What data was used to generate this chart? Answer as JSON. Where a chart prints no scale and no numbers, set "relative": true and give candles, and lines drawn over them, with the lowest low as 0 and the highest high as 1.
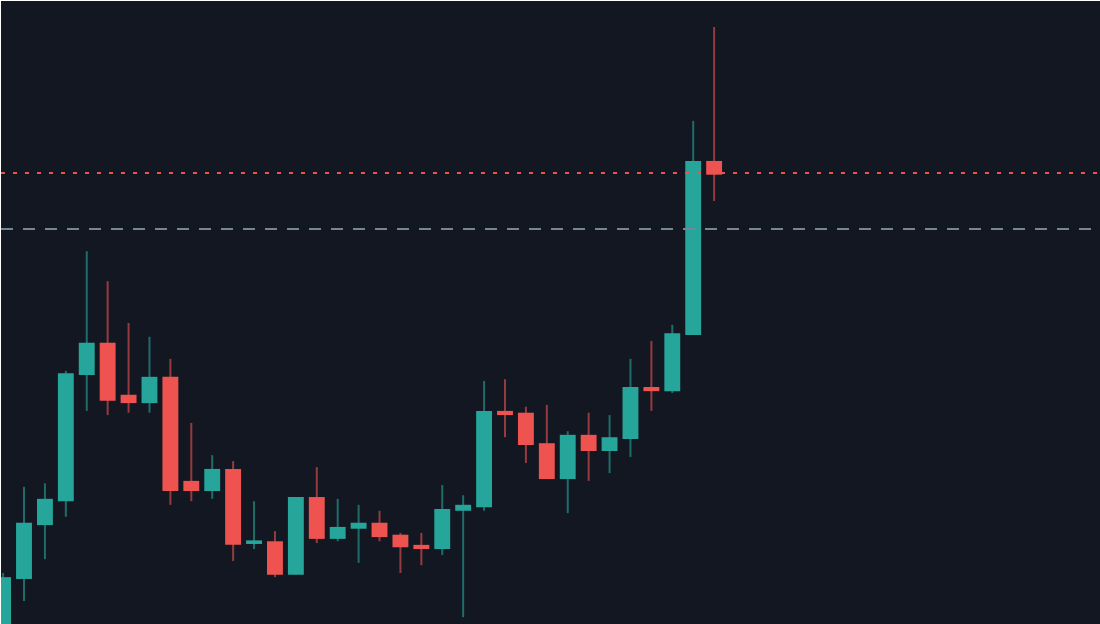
{
  "chart_data": {
    "type": "candlestick",
    "relative": true,
    "grid": false,
    "categories": [
      null,
      null,
      null,
      null,
      null,
      null,
      null,
      null,
      null,
      null,
      null,
      null,
      null,
      null,
      null,
      null,
      null,
      null,
      null,
      null,
      null,
      null,
      null,
      null,
      null,
      null,
      null,
      null,
      null,
      null,
      null,
      null,
      null,
      null,
      null,
      null,
      null,
      null,
      null,
      null,
      null,
      null,
      null,
      null,
      null,
      null,
      null,
      null,
      null,
      null,
      null,
      null,
      null
    ],
    "ohlc": [
      [
        0,
        0.087,
        0,
        0.08
      ],
      [
        0.077,
        0.231,
        0.04,
        0.171
      ],
      [
        0.167,
        0.237,
        0.11,
        0.211
      ],
      [
        0.207,
        0.425,
        0.181,
        0.421
      ],
      [
        0.418,
        0.625,
        0.358,
        0.472
      ],
      [
        0.472,
        0.575,
        0.351,
        0.375
      ],
      [
        0.385,
        0.505,
        0.355,
        0.371
      ],
      [
        0.371,
        0.482,
        0.355,
        0.415
      ],
      [
        0.415,
        0.445,
        0.201,
        0.224
      ],
      [
        0.241,
        0.338,
        0.207,
        0.224
      ],
      [
        0.224,
        0.284,
        0.211,
        0.261
      ],
      [
        0.261,
        0.274,
        0.107,
        0.134
      ],
      [
        0.137,
        0.207,
        0.127,
        0.14
      ],
      [
        0.14,
        0.157,
        0.08,
        0.084
      ],
      [
        0.084,
        0.214,
        0.084,
        0.214
      ],
      [
        0.214,
        0.264,
        0.137,
        0.144
      ],
      [
        0.144,
        0.211,
        0.14,
        0.164
      ],
      [
        0.161,
        0.201,
        0.104,
        0.171
      ],
      [
        0.171,
        0.191,
        0.14,
        0.147
      ],
      [
        0.151,
        0.154,
        0.087,
        0.13
      ],
      [
        0.134,
        0.154,
        0.1,
        0.127
      ],
      [
        0.127,
        0.234,
        0.117,
        0.194
      ],
      [
        0.191,
        0.217,
        0.013,
        0.201
      ],
      [
        0.197,
        0.408,
        0.191,
        0.358
      ],
      [
        0.358,
        0.411,
        0.314,
        0.351
      ],
      [
        0.355,
        0.365,
        0.271,
        0.301
      ],
      [
        0.304,
        0.368,
        0.244,
        0.244
      ],
      [
        0.244,
        0.324,
        0.187,
        0.318
      ],
      [
        0.318,
        0.355,
        0.241,
        0.291
      ],
      [
        0.291,
        0.351,
        0.254,
        0.314
      ],
      [
        0.311,
        0.445,
        0.281,
        0.398
      ],
      [
        0.398,
        0.475,
        0.358,
        0.391
      ],
      [
        0.391,
        0.502,
        0.388,
        0.488
      ],
      [
        0.485,
        0.843,
        0.485,
        0.776
      ],
      [
        0.776,
        1.0,
        0.709,
        0.753
      ],
      null,
      null,
      null,
      null,
      null,
      null,
      null,
      null,
      null,
      null,
      null,
      null,
      null,
      null,
      null,
      null,
      null,
      null
    ],
    "colors": [
      "#26a69a",
      "#26a69a",
      "#26a69a",
      "#26a69a",
      "#26a69a",
      "#ef5350",
      "#ef5350",
      "#26a69a",
      "#ef5350",
      "#ef5350",
      "#26a69a",
      "#ef5350",
      "#26a69a",
      "#ef5350",
      "#26a69a",
      "#ef5350",
      "#26a69a",
      "#26a69a",
      "#ef5350",
      "#ef5350",
      "#ef5350",
      "#26a69a",
      "#26a69a",
      "#26a69a",
      "#ef5350",
      "#ef5350",
      "#ef5350",
      "#26a69a",
      "#ef5350",
      "#26a69a",
      "#26a69a",
      "#ef5350",
      "#26a69a",
      "#26a69a",
      "#ef5350",
      null,
      null,
      null,
      null,
      null,
      null,
      null,
      null,
      null,
      null,
      null,
      null,
      null,
      null,
      null,
      null,
      null,
      null
    ],
    "ref_lines": [
      {
        "axis": "y",
        "value": 0.756,
        "color": "#ef5350",
        "line_style": "dotted"
      },
      {
        "axis": "y",
        "value": 0.662,
        "color": "#758696",
        "line_style": "dashed"
      }
    ]
  }
}
